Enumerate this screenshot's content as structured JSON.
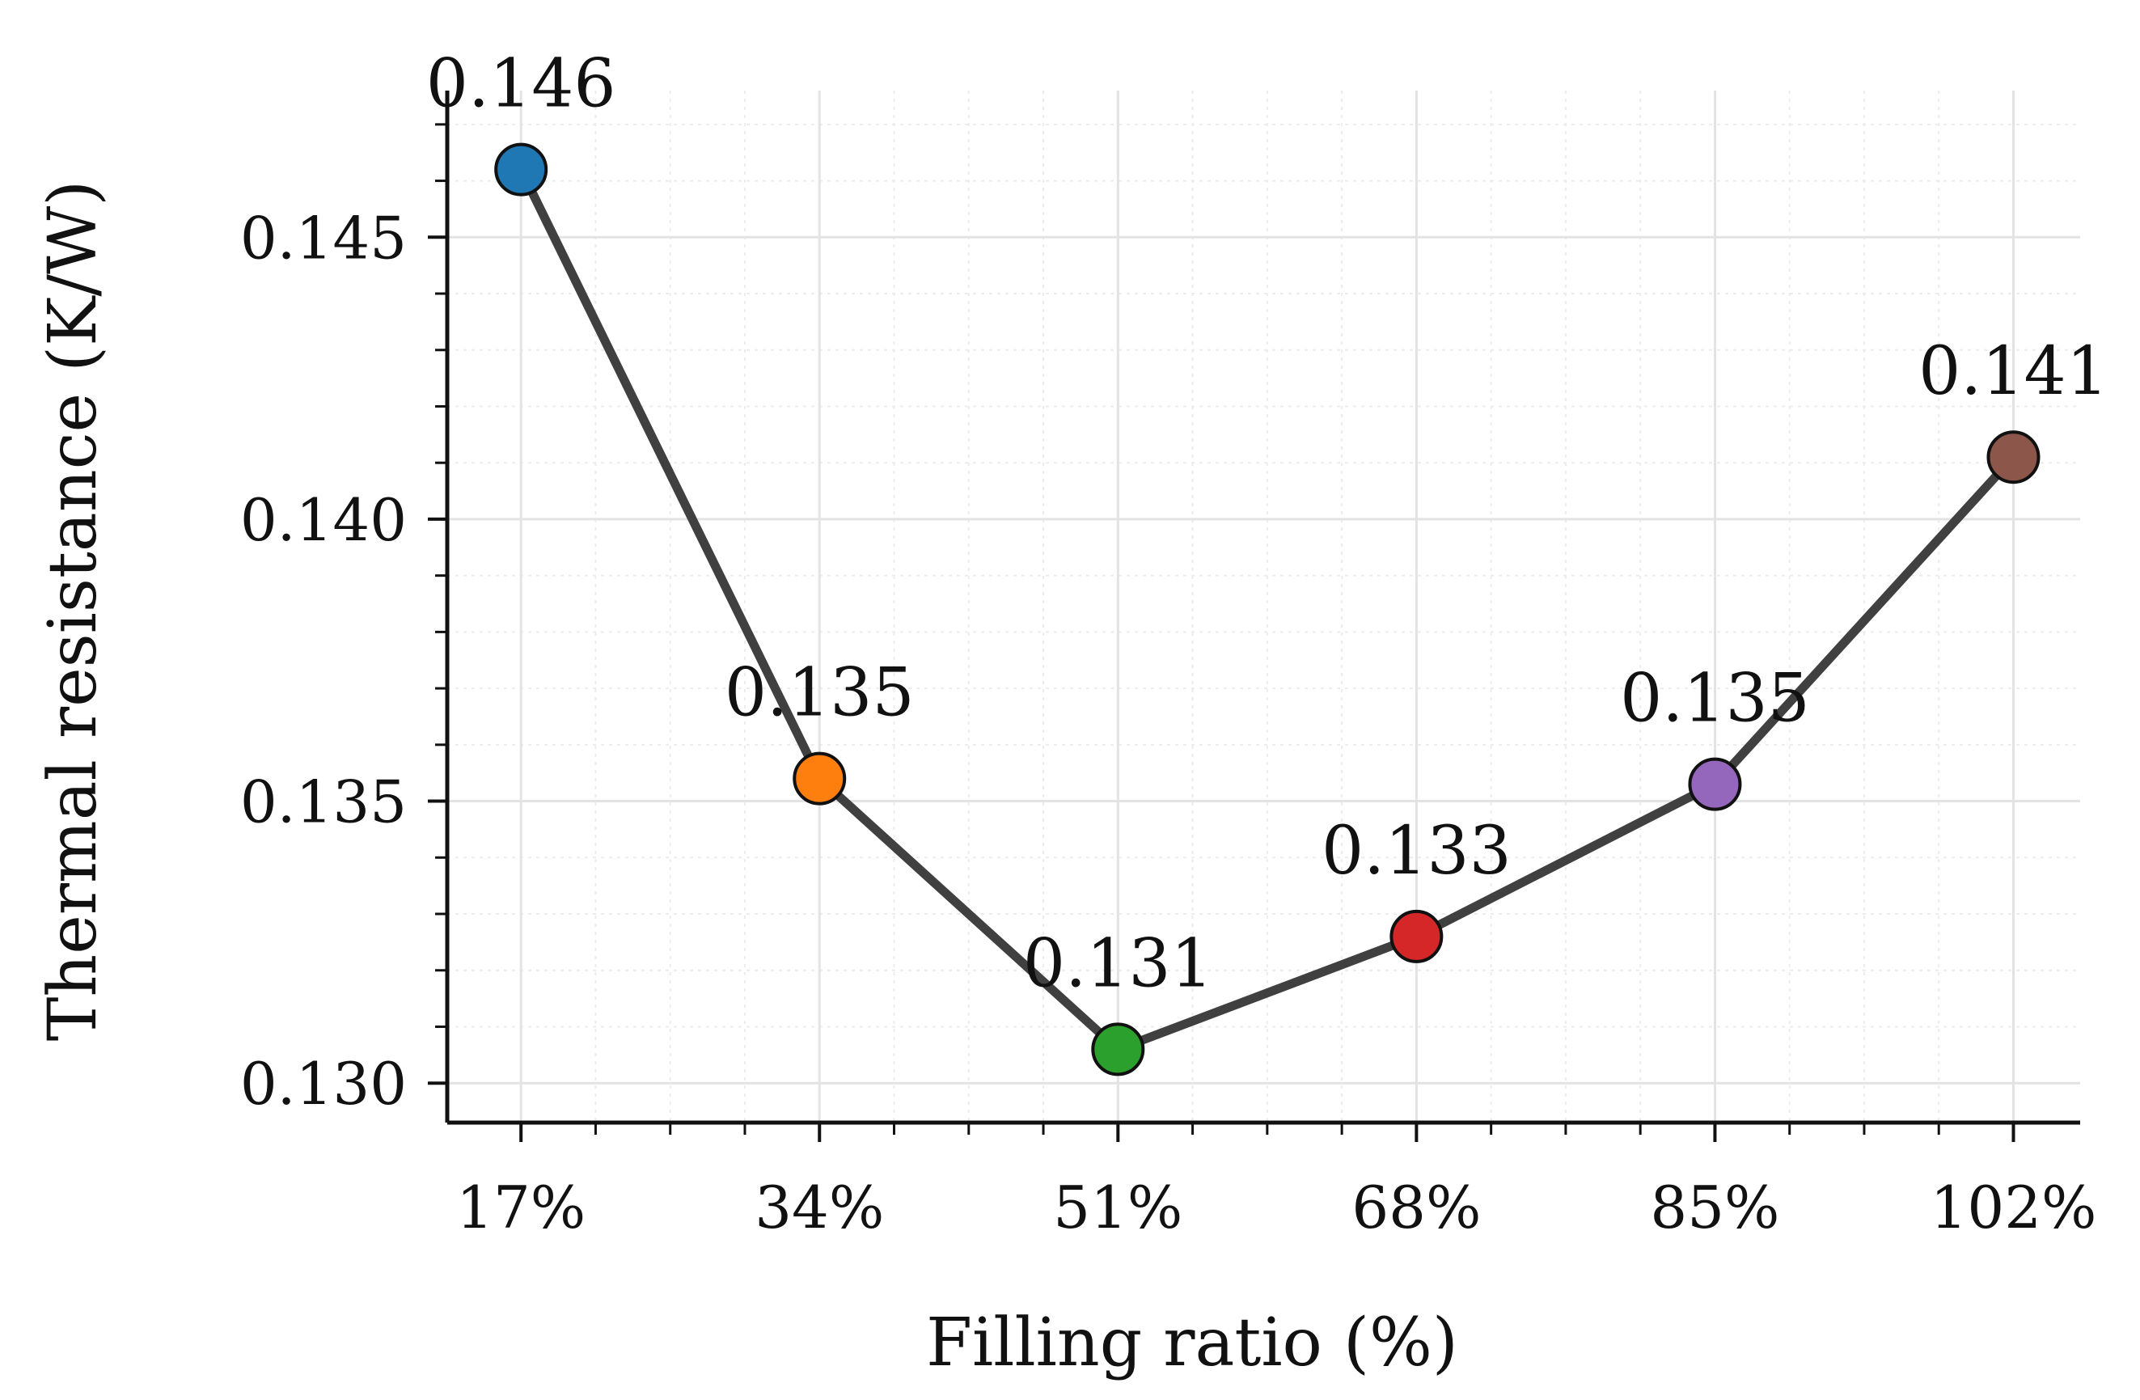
{
  "chart_data": {
    "type": "line",
    "title": "",
    "xlabel": "Filling ratio (%)",
    "ylabel": "Thermal resistance (K/W)",
    "categories": [
      "17%",
      "34%",
      "51%",
      "68%",
      "85%",
      "102%"
    ],
    "x": [
      17,
      34,
      51,
      68,
      85,
      102
    ],
    "values": [
      0.1462,
      0.1354,
      0.1306,
      0.1326,
      0.1353,
      0.1411
    ],
    "data_labels": [
      "0.146",
      "0.135",
      "0.131",
      "0.133",
      "0.135",
      "0.141"
    ],
    "marker_colors": [
      "#1f77b4",
      "#ff7f0e",
      "#2ca02c",
      "#d62728",
      "#9467bd",
      "#8c564b"
    ],
    "line_color": "#404040",
    "ylim": [
      0.1293,
      0.1476
    ],
    "xlim": [
      12.8,
      105.8
    ],
    "yticks": [
      0.13,
      0.135,
      0.14,
      0.145
    ],
    "ytick_labels": [
      "0.130",
      "0.135",
      "0.140",
      "0.145"
    ],
    "grid": true,
    "legend": "none"
  }
}
